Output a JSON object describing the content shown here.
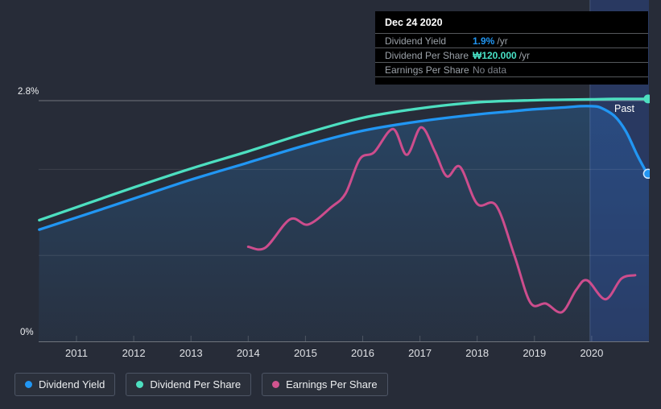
{
  "tooltip": {
    "title": "Dec 24 2020",
    "rows": [
      {
        "label": "Dividend Yield",
        "value": "1.9%",
        "suffix": "/yr",
        "color_key": "dividend_yield"
      },
      {
        "label": "Dividend Per Share",
        "value": "₩120.000",
        "suffix": "/yr",
        "color_key": "dividend_per_share"
      },
      {
        "label": "Earnings Per Share",
        "value": "No data",
        "suffix": "",
        "color_key": "muted"
      }
    ]
  },
  "labels": {
    "past": "Past"
  },
  "legend": {
    "items": [
      {
        "label": "Dividend Yield",
        "color": "#2196f3"
      },
      {
        "label": "Dividend Per Share",
        "color": "#4ddfc0"
      },
      {
        "label": "Earnings Per Share",
        "color": "#d1548f"
      }
    ]
  },
  "colors": {
    "background": "#272c38",
    "dividend_yield": "#2196f3",
    "dividend_per_share": "#48e1c6",
    "earnings_per_share": "#cd4d8d",
    "muted": "#7d828a",
    "axis": "#70757d",
    "tick_label": "#dfe1e5",
    "highlight_band": "rgba(45,95,205,0.28)"
  },
  "chart_data": {
    "type": "line",
    "title": "Dividend Yield, Dividend Per Share and Earnings Per Share over time",
    "x_axis": {
      "ticks": [
        2011,
        2012,
        2013,
        2014,
        2015,
        2016,
        2017,
        2018,
        2019,
        2020
      ],
      "range": [
        2010.35,
        2021.0
      ]
    },
    "y_axis": {
      "min_label": "0%",
      "max_label": "2.8%",
      "range_pct": [
        0,
        2.8
      ],
      "gridlines_pct": [
        1,
        2,
        2.8
      ],
      "grid": true
    },
    "highlight_band": {
      "start_year": 2019.97,
      "end_year": 2021.0,
      "label": "Past"
    },
    "legend_position": "bottom-left",
    "series": [
      {
        "name": "Dividend Yield",
        "unit": "% per year",
        "color": "#2196f3",
        "end_marker": true,
        "area_fill": true,
        "points": [
          [
            2010.35,
            1.3
          ],
          [
            2011,
            1.44
          ],
          [
            2012,
            1.66
          ],
          [
            2013,
            1.88
          ],
          [
            2014,
            2.08
          ],
          [
            2015,
            2.28
          ],
          [
            2016,
            2.45
          ],
          [
            2017,
            2.56
          ],
          [
            2018,
            2.64
          ],
          [
            2018.5,
            2.67
          ],
          [
            2019,
            2.7
          ],
          [
            2019.5,
            2.72
          ],
          [
            2019.8,
            2.735
          ],
          [
            2020.0,
            2.735
          ],
          [
            2020.15,
            2.72
          ],
          [
            2020.4,
            2.62
          ],
          [
            2020.6,
            2.44
          ],
          [
            2020.8,
            2.16
          ],
          [
            2020.97,
            1.95
          ]
        ]
      },
      {
        "name": "Dividend Per Share",
        "unit": "scaled to yield axis; latest value ₩120.000 /yr",
        "color": "#4ddfc0",
        "end_marker": true,
        "area_fill": false,
        "points": [
          [
            2010.35,
            1.41
          ],
          [
            2011,
            1.56
          ],
          [
            2012,
            1.79
          ],
          [
            2013,
            2.01
          ],
          [
            2014,
            2.21
          ],
          [
            2015,
            2.42
          ],
          [
            2016,
            2.6
          ],
          [
            2017,
            2.71
          ],
          [
            2018,
            2.78
          ],
          [
            2019,
            2.805
          ],
          [
            2019.5,
            2.81
          ],
          [
            2020,
            2.815
          ],
          [
            2020.5,
            2.82
          ],
          [
            2020.97,
            2.82
          ]
        ]
      },
      {
        "name": "Earnings Per Share",
        "unit": "scaled to yield axis; latest shown as No data",
        "color": "#cd4d8d",
        "end_marker": false,
        "area_fill": false,
        "points": [
          [
            2014.0,
            1.1
          ],
          [
            2014.3,
            1.09
          ],
          [
            2014.73,
            1.42
          ],
          [
            2015.05,
            1.36
          ],
          [
            2015.45,
            1.56
          ],
          [
            2015.7,
            1.72
          ],
          [
            2015.95,
            2.12
          ],
          [
            2016.2,
            2.2
          ],
          [
            2016.53,
            2.47
          ],
          [
            2016.77,
            2.17
          ],
          [
            2017.02,
            2.49
          ],
          [
            2017.26,
            2.21
          ],
          [
            2017.47,
            1.92
          ],
          [
            2017.7,
            2.03
          ],
          [
            2018.0,
            1.6
          ],
          [
            2018.33,
            1.58
          ],
          [
            2018.65,
            1.0
          ],
          [
            2018.93,
            0.45
          ],
          [
            2019.2,
            0.44
          ],
          [
            2019.48,
            0.34
          ],
          [
            2019.73,
            0.6
          ],
          [
            2019.92,
            0.71
          ],
          [
            2020.24,
            0.49
          ],
          [
            2020.52,
            0.73
          ],
          [
            2020.76,
            0.77
          ]
        ]
      }
    ]
  }
}
